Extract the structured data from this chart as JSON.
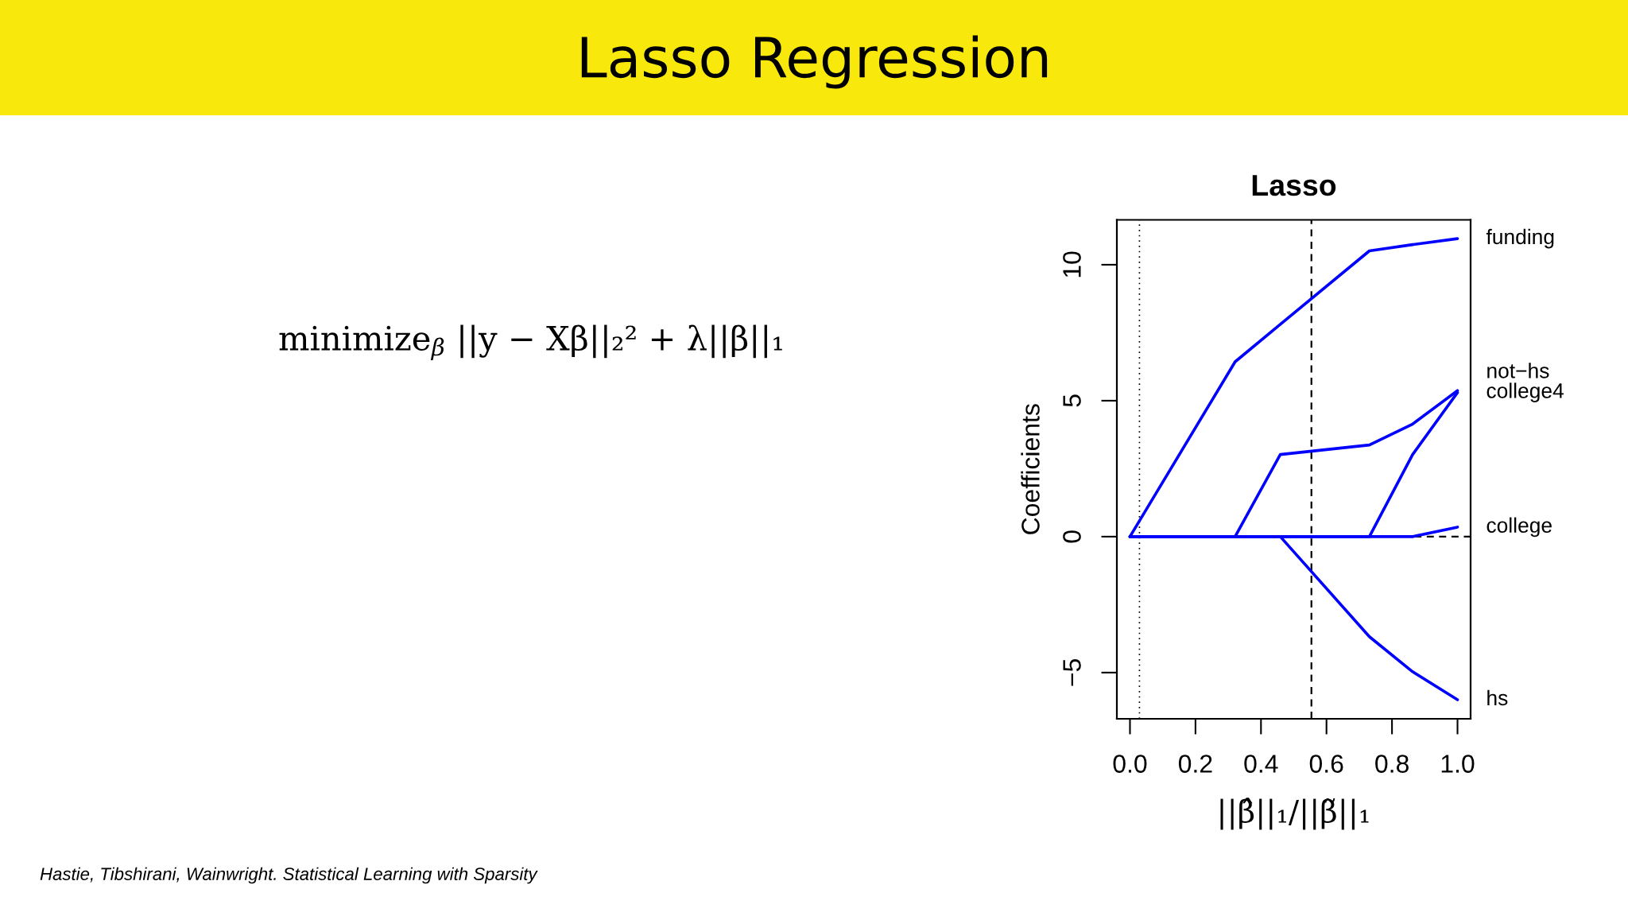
{
  "chart_data": {
    "type": "line",
    "title": "Lasso",
    "xlabel": "||β̂||₁/||β̃||₁",
    "ylabel": "Coefficients",
    "x": [
      0,
      0.321,
      0.459,
      0.731,
      0.863,
      1.0
    ],
    "series": [
      {
        "name": "funding",
        "color": "#0000ff",
        "values": [
          0,
          6.43,
          7.81,
          10.51,
          10.74,
          10.96
        ]
      },
      {
        "name": "not−hs",
        "color": "#0000ff",
        "values": [
          0,
          0,
          3.02,
          3.37,
          4.14,
          5.37
        ]
      },
      {
        "name": "college4",
        "color": "#0000ff",
        "values": [
          0,
          0,
          0,
          0,
          3.02,
          5.3
        ]
      },
      {
        "name": "college",
        "color": "#0000ff",
        "values": [
          0,
          0,
          0,
          0,
          0,
          0.35
        ]
      },
      {
        "name": "hs",
        "color": "#0000ff",
        "values": [
          0,
          0,
          0,
          -3.68,
          -4.97,
          -6.0
        ]
      }
    ],
    "xlim": [
      -0.04,
      1.04
    ],
    "ylim": [
      -6.7,
      11.65
    ],
    "xticks": [
      {
        "value": 0,
        "label": "0.0"
      },
      0.2,
      0.4,
      0.6,
      0.8,
      {
        "value": 1,
        "label": "1.0"
      }
    ],
    "yticks": [
      {
        "value": -5,
        "label": "−5"
      },
      0,
      5,
      10
    ],
    "ref_lines": [
      {
        "axis": "x",
        "value": 0.029,
        "color": "#000000",
        "line_style": "dotted"
      },
      {
        "axis": "x",
        "value": 0.554,
        "color": "#000000",
        "line_style": "dashed"
      },
      {
        "axis": "y",
        "value": 0,
        "color": "#000000",
        "line_style": "dashed"
      }
    ],
    "annotations": [
      "Lasso Regression",
      "minimize$_{β}$ ||y − Xβ||₂² + λ||β||₁",
      "Hastie, Tibshirani, Wainwright. Statistical Learning with Sparsity"
    ],
    "grid": false,
    "legend": false,
    "line_style": "solid"
  }
}
